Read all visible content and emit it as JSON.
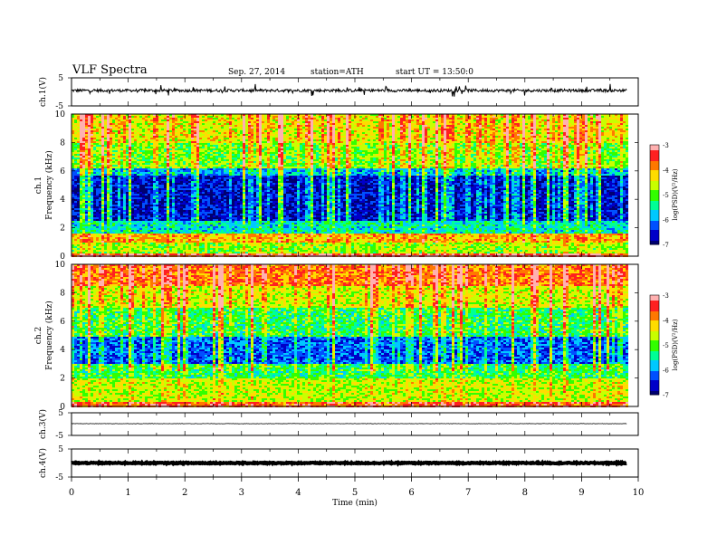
{
  "header": {
    "title": "VLF Spectra",
    "date": "Sep. 27, 2014",
    "station": "station=ATH",
    "start_time": "start UT = 13:50:0"
  },
  "colors": {
    "colormap": [
      "#000070",
      "#0000c8",
      "#0050ff",
      "#00c8ff",
      "#00ff96",
      "#32ff00",
      "#c8ff00",
      "#ffdc00",
      "#ff7800",
      "#ff2020",
      "#ffb0b0"
    ],
    "trace": "#000000",
    "background": "#ffffff"
  },
  "chart_data": [
    {
      "type": "line",
      "name": "ch1-waveform",
      "ylabel": "ch.1(V)",
      "ylim": [
        -5,
        5
      ],
      "y_ticks": [
        "5",
        "-5"
      ],
      "x_range_min": [
        0,
        9.8
      ],
      "approx_level": 0.5,
      "approx_noise_amplitude": 0.5,
      "spikes": "frequent up to about ±2 V"
    },
    {
      "type": "heatmap",
      "name": "ch1-spectrogram",
      "ylabel_top": "ch.1",
      "ylabel": "Frequency (kHz)",
      "ylim": [
        0,
        10
      ],
      "y_ticks": [
        "0",
        "2",
        "4",
        "6",
        "8",
        "10"
      ],
      "x_range_min": [
        0,
        9.8
      ],
      "colorbar_label": "log(PSD)(V²/Hz)",
      "colorbar_range": [
        -7,
        -3
      ],
      "colorbar_ticks": [
        "-3",
        "-4",
        "-5",
        "-6",
        "-7"
      ],
      "frequency_profile_log_psd": [
        {
          "f_khz": [
            0,
            0.3
          ],
          "log_psd": -3.4
        },
        {
          "f_khz": [
            0.3,
            1.0
          ],
          "log_psd": -4.8
        },
        {
          "f_khz": [
            1.0,
            1.7
          ],
          "log_psd": -4.1
        },
        {
          "f_khz": [
            1.7,
            2.5
          ],
          "log_psd": -5.6
        },
        {
          "f_khz": [
            2.5,
            5.7
          ],
          "log_psd": -6.6
        },
        {
          "f_khz": [
            5.7,
            6.3
          ],
          "log_psd": -5.9
        },
        {
          "f_khz": [
            6.3,
            8.0
          ],
          "log_psd": -4.9
        },
        {
          "f_khz": [
            8.0,
            10.0
          ],
          "log_psd": -4.4
        }
      ],
      "sferic_broadband_lines": "many vertical broadband events throughout the record"
    },
    {
      "type": "heatmap",
      "name": "ch2-spectrogram",
      "ylabel_top": "ch.2",
      "ylabel": "Frequency (kHz)",
      "ylim": [
        0,
        10
      ],
      "y_ticks": [
        "0",
        "2",
        "4",
        "6",
        "8",
        "10"
      ],
      "x_range_min": [
        0,
        9.8
      ],
      "colorbar_label": "log(PSD)(V²/Hz)",
      "colorbar_range": [
        -7,
        -3
      ],
      "colorbar_ticks": [
        "-3",
        "-4",
        "-5",
        "-6",
        "-7"
      ],
      "frequency_profile_log_psd": [
        {
          "f_khz": [
            0,
            0.4
          ],
          "log_psd": -3.6
        },
        {
          "f_khz": [
            0.4,
            2.0
          ],
          "log_psd": -4.6
        },
        {
          "f_khz": [
            2.0,
            3.0
          ],
          "log_psd": -5.2
        },
        {
          "f_khz": [
            3.0,
            5.0
          ],
          "log_psd": -6.2
        },
        {
          "f_khz": [
            5.0,
            7.0
          ],
          "log_psd": -5.2
        },
        {
          "f_khz": [
            7.0,
            8.5
          ],
          "log_psd": -4.5
        },
        {
          "f_khz": [
            8.5,
            10.0
          ],
          "log_psd": -3.8
        }
      ],
      "sferic_broadband_lines": "many vertical broadband events throughout the record"
    },
    {
      "type": "line",
      "name": "ch3-waveform",
      "ylabel": "ch.3(V)",
      "ylim": [
        -5,
        5
      ],
      "y_ticks": [
        "5",
        "-5"
      ],
      "x_range_min": [
        0,
        9.8
      ],
      "approx_level": 0.2,
      "approx_noise_amplitude": 0.1
    },
    {
      "type": "line",
      "name": "ch4-waveform",
      "ylabel": "ch.4(V)",
      "ylim": [
        -5,
        5
      ],
      "y_ticks": [
        "5",
        "-5"
      ],
      "x_range_min": [
        0,
        9.8
      ],
      "approx_level": 0.0,
      "approx_noise_amplitude": 0.2
    }
  ],
  "x_axis": {
    "label": "Time (min)",
    "range": [
      0,
      10
    ],
    "ticks": [
      "0",
      "1",
      "2",
      "3",
      "4",
      "5",
      "6",
      "7",
      "8",
      "9",
      "10"
    ]
  }
}
